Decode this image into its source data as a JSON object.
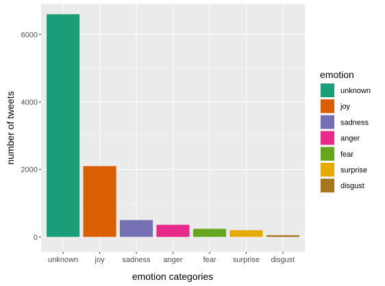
{
  "chart_data": {
    "type": "bar",
    "categories": [
      "unknown",
      "joy",
      "sadness",
      "anger",
      "fear",
      "surprise",
      "disgust"
    ],
    "values": [
      6600,
      2100,
      500,
      360,
      240,
      200,
      50
    ],
    "colors": [
      "#1b9e77",
      "#d95f02",
      "#7570b3",
      "#e7298a",
      "#66a61e",
      "#e6ab02",
      "#a6761d"
    ],
    "xlabel": "emotion categories",
    "ylabel": "number of tweets",
    "ylim": [
      -440,
      6900
    ],
    "yticks": [
      0,
      2000,
      4000,
      6000
    ],
    "grid": true,
    "background": "#ebebeb",
    "legend": {
      "title": "emotion",
      "position": "right",
      "entries": [
        "unknown",
        "joy",
        "sadness",
        "anger",
        "fear",
        "surprise",
        "disgust"
      ]
    }
  }
}
